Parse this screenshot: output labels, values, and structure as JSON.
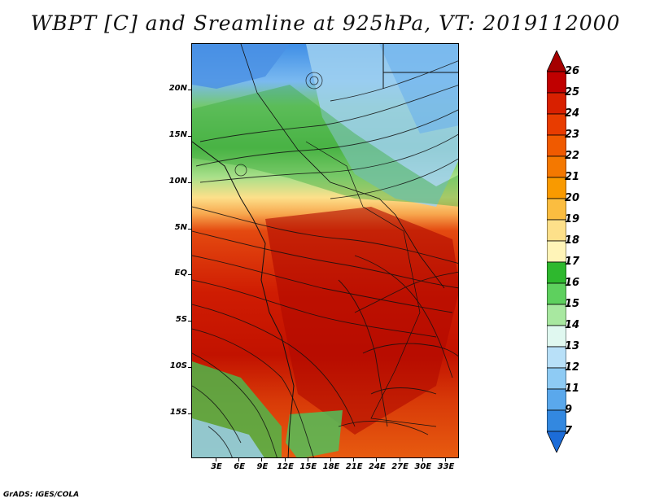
{
  "title": "WBPT [C] and Sreamline at 925hPa, VT: 2019112000",
  "credit": "GrADS: IGES/COLA",
  "map": {
    "lat_labels": [
      "20N",
      "15N",
      "10N",
      "5N",
      "EQ",
      "5S",
      "10S",
      "15S"
    ],
    "lon_labels": [
      "3E",
      "6E",
      "9E",
      "12E",
      "15E",
      "18E",
      "21E",
      "24E",
      "27E",
      "30E",
      "33E"
    ]
  },
  "colorbar": {
    "labels": [
      "26",
      "25",
      "24",
      "23",
      "22",
      "21",
      "20",
      "19",
      "18",
      "17",
      "16",
      "15",
      "14",
      "13",
      "12",
      "11",
      "9",
      "7"
    ],
    "colors": [
      "#a50000",
      "#c00000",
      "#d82000",
      "#e83c00",
      "#f05a00",
      "#f47800",
      "#f99a00",
      "#fbbd40",
      "#fde08a",
      "#fff4b8",
      "#2eb82e",
      "#5ed05e",
      "#a8e8a0",
      "#e0f8f0",
      "#b8e0f8",
      "#8ecbf4",
      "#5aa8ec",
      "#3388e0",
      "#1c6cd8"
    ]
  }
}
